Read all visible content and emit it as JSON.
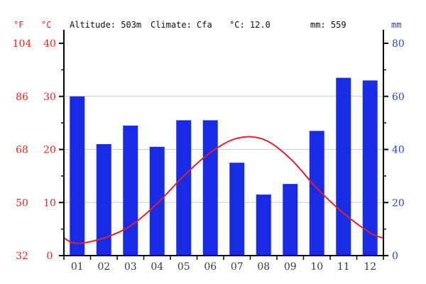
{
  "header": {
    "f_axis_title": "°F",
    "c_axis_title": "°C",
    "altitude": "Altitude: 503m",
    "climate": "Climate: Cfa",
    "mean_temperature": "°C: 12.0",
    "annual_precipitation": "mm: 559",
    "mm_axis_title": "mm"
  },
  "colors": {
    "bar": "#1a2be8",
    "temp_line": "#d9232e",
    "left_axis_text": "#ee2222",
    "right_axis_text": "#2a41cf",
    "month_text": "#3a3a3a",
    "axis_line": "#000000",
    "gridline": "#cccccc"
  },
  "chart_data": {
    "type": "bar+line",
    "title": "Climate chart (climograph)",
    "categories": [
      "01",
      "02",
      "03",
      "04",
      "05",
      "06",
      "07",
      "08",
      "09",
      "10",
      "11",
      "12"
    ],
    "series": [
      {
        "name": "precipitation_mm",
        "type": "bar",
        "axis": "right_mm",
        "values": [
          60,
          42,
          49,
          41,
          51,
          51,
          35,
          23,
          27,
          47,
          67,
          66
        ]
      },
      {
        "name": "temperature_c",
        "type": "line",
        "axis": "left_c",
        "values": [
          2.3,
          3.3,
          5.6,
          9.8,
          15.0,
          19.4,
          22.1,
          21.9,
          18.3,
          12.7,
          8.0,
          4.3
        ]
      }
    ],
    "axes": {
      "left_f": {
        "title": "°F",
        "ticks": [
          32,
          50,
          68,
          86,
          104
        ],
        "range": [
          32,
          104
        ]
      },
      "left_c": {
        "title": "°C",
        "ticks": [
          0,
          10,
          20,
          30,
          40
        ],
        "minor_ticks": [
          5,
          15,
          25,
          35
        ],
        "range": [
          0,
          40
        ]
      },
      "right_mm": {
        "title": "mm",
        "ticks": [
          0,
          20,
          40,
          60,
          80
        ],
        "minor_ticks": [
          10,
          30,
          50,
          70
        ],
        "range": [
          0,
          80
        ]
      },
      "x": {
        "tick_labels": [
          "01",
          "02",
          "03",
          "04",
          "05",
          "06",
          "07",
          "08",
          "09",
          "10",
          "11",
          "12"
        ]
      }
    },
    "grid": true,
    "legend": false
  }
}
